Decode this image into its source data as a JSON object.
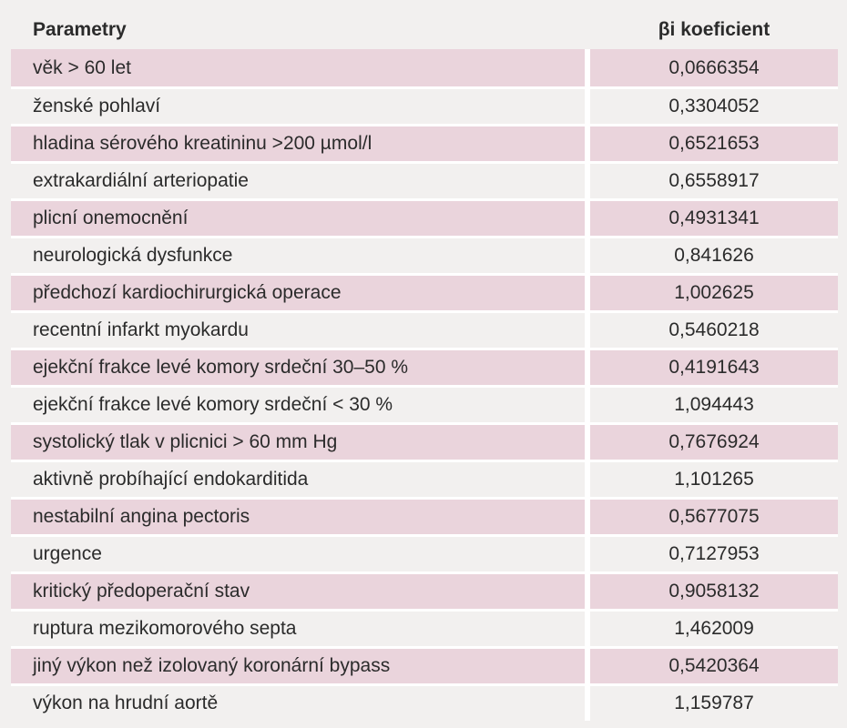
{
  "table": {
    "headers": {
      "parameter": "Parametry",
      "coefficient": "βi koeficient"
    },
    "rows": [
      {
        "parameter": "věk > 60 let",
        "coefficient": "0,0666354"
      },
      {
        "parameter": "ženské pohlaví",
        "coefficient": "0,3304052"
      },
      {
        "parameter": "hladina sérového kreatininu >200 µmol/l",
        "coefficient": "0,6521653"
      },
      {
        "parameter": "extrakardiální arteriopatie",
        "coefficient": "0,6558917"
      },
      {
        "parameter": "plicní onemocnění",
        "coefficient": "0,4931341"
      },
      {
        "parameter": "neurologická dysfunkce",
        "coefficient": "0,841626"
      },
      {
        "parameter": "předchozí kardiochirurgická operace",
        "coefficient": "1,002625"
      },
      {
        "parameter": "recentní infarkt myokardu",
        "coefficient": "0,5460218"
      },
      {
        "parameter": "ejekční frakce levé komory srdeční 30–50 %",
        "coefficient": "0,4191643"
      },
      {
        "parameter": "ejekční frakce levé komory srdeční < 30 %",
        "coefficient": "1,094443"
      },
      {
        "parameter": "systolický tlak v plicnici > 60 mm Hg",
        "coefficient": "0,7676924"
      },
      {
        "parameter": "aktivně probíhající endokarditida",
        "coefficient": "1,101265"
      },
      {
        "parameter": "nestabilní angina pectoris",
        "coefficient": "0,5677075"
      },
      {
        "parameter": "urgence",
        "coefficient": "0,7127953"
      },
      {
        "parameter": "kritický předoperační stav",
        "coefficient": "0,9058132"
      },
      {
        "parameter": "ruptura mezikomorového septa",
        "coefficient": "1,462009"
      },
      {
        "parameter": "jiný výkon než izolovaný koronární bypass",
        "coefficient": "0,5420364"
      },
      {
        "parameter": "výkon na hrudní aortě",
        "coefficient": "1,159787"
      }
    ]
  },
  "colors": {
    "shaded_row": "#ead4dc",
    "plain_row": "#f2f0ef",
    "separator": "#ffffff"
  }
}
